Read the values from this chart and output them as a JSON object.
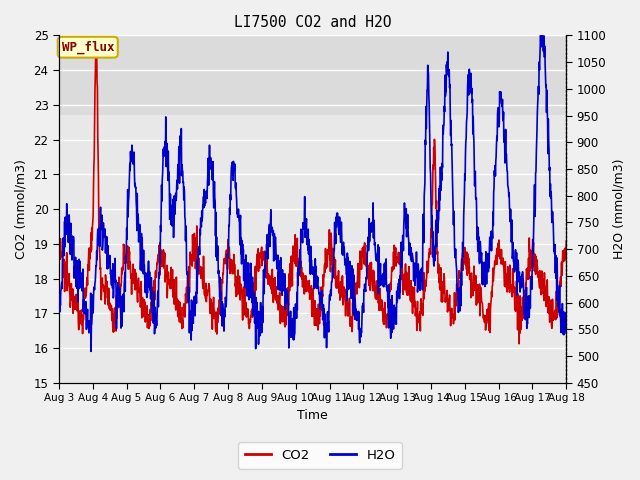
{
  "title": "LI7500 CO2 and H2O",
  "xlabel": "Time",
  "ylabel_left": "CO2 (mmol/m3)",
  "ylabel_right": "H2O (mmol/m3)",
  "ylim_left": [
    15.0,
    25.0
  ],
  "ylim_right": [
    450,
    1100
  ],
  "yticks_left": [
    15.0,
    16.0,
    17.0,
    18.0,
    19.0,
    20.0,
    21.0,
    22.0,
    23.0,
    24.0,
    25.0
  ],
  "yticks_right": [
    450,
    500,
    550,
    600,
    650,
    700,
    750,
    800,
    850,
    900,
    950,
    1000,
    1050,
    1100
  ],
  "xtick_labels": [
    "Aug 3",
    "Aug 4",
    "Aug 5",
    "Aug 6",
    "Aug 7",
    "Aug 8",
    "Aug 9",
    "Aug 10",
    "Aug 11",
    "Aug 12",
    "Aug 13",
    "Aug 14",
    "Aug 15",
    "Aug 16",
    "Aug 17",
    "Aug 18"
  ],
  "co2_color": "#cc0000",
  "h2o_color": "#0000cc",
  "fig_bg_color": "#f0f0f0",
  "plot_bg_color": "#e8e8e8",
  "plot_bg_top": "#d8d8d8",
  "grid_color": "#ffffff",
  "annotation_text": "WP_flux",
  "annotation_bg": "#ffffcc",
  "annotation_border": "#ccaa00",
  "legend_co2": "CO2",
  "legend_h2o": "H2O",
  "line_width": 1.2
}
